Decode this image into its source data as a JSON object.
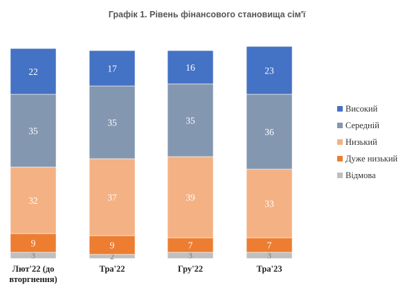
{
  "chart_data": {
    "type": "bar",
    "stacked": true,
    "title": "Графік 1. Рівень фінансового становища сім'ї",
    "xlabel": "",
    "ylabel": "",
    "ylim": [
      0,
      100
    ],
    "grid": false,
    "legend_position": "right",
    "categories": [
      [
        "Лют'22 (до",
        "вторгнення)"
      ],
      [
        "Тра'22"
      ],
      [
        "Гру'22"
      ],
      [
        "Тра'23"
      ]
    ],
    "series": [
      {
        "name": "Відмова",
        "color": "#bfbfbf",
        "values": [
          3,
          2,
          3,
          3
        ]
      },
      {
        "name": "Дуже низький",
        "color": "#ed7d31",
        "values": [
          9,
          9,
          7,
          7
        ]
      },
      {
        "name": "Низький",
        "color": "#f4b183",
        "values": [
          32,
          37,
          39,
          33
        ]
      },
      {
        "name": "Середній",
        "color": "#8497b0",
        "values": [
          35,
          35,
          35,
          36
        ]
      },
      {
        "name": "Високий",
        "color": "#4472c4",
        "values": [
          22,
          17,
          16,
          23
        ]
      }
    ],
    "legend_order": [
      "Високий",
      "Середній",
      "Низький",
      "Дуже низький",
      "Відмова"
    ]
  }
}
